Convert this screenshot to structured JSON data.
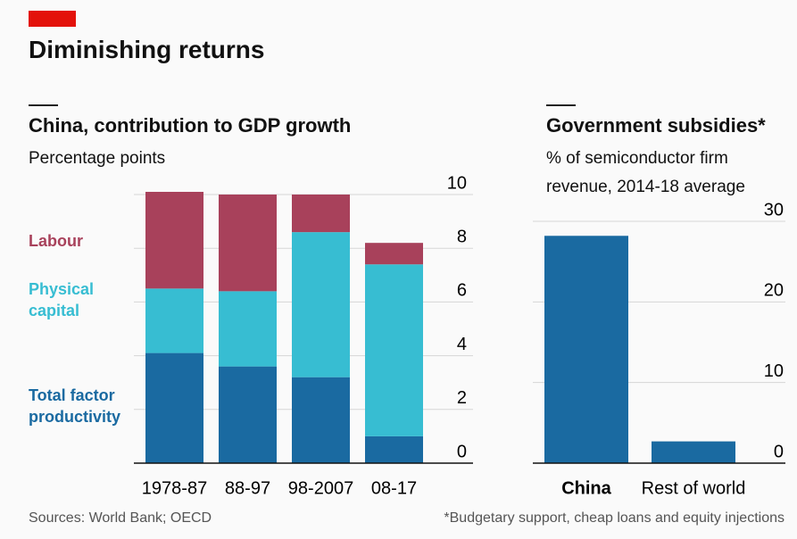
{
  "title": "Diminishing returns",
  "sources": "Sources: World Bank; OECD",
  "footnote": "*Budgetary support, cheap loans and equity injections",
  "chart_data": [
    {
      "type": "stacked_bar",
      "title": "China, contribution to GDP growth",
      "subtitle": "Percentage points",
      "categories": [
        "1978-87",
        "88-97",
        "98-2007",
        "08-17"
      ],
      "series": [
        {
          "name": "Total factor productivity",
          "color": "#1a6aa1",
          "values": [
            4.1,
            3.6,
            3.2,
            1.0
          ]
        },
        {
          "name": "Physical capital",
          "color": "#37bdd2",
          "values": [
            2.4,
            2.8,
            5.4,
            6.4
          ]
        },
        {
          "name": "Labour",
          "color": "#a8415b",
          "values": [
            3.6,
            3.6,
            1.4,
            0.8
          ]
        }
      ],
      "ylim": [
        0,
        10
      ],
      "yticks": [
        0,
        2,
        4,
        6,
        8,
        10
      ],
      "grid": true
    },
    {
      "type": "bar",
      "title": "Government subsidies*",
      "subtitle": "% of semiconductor firm revenue, 2014-18 average",
      "categories": [
        "China",
        "Rest of world"
      ],
      "values": [
        28.2,
        2.7
      ],
      "color": "#1a6aa1",
      "ylim": [
        0,
        30
      ],
      "yticks": [
        0,
        10,
        20,
        30
      ],
      "grid": true
    }
  ]
}
